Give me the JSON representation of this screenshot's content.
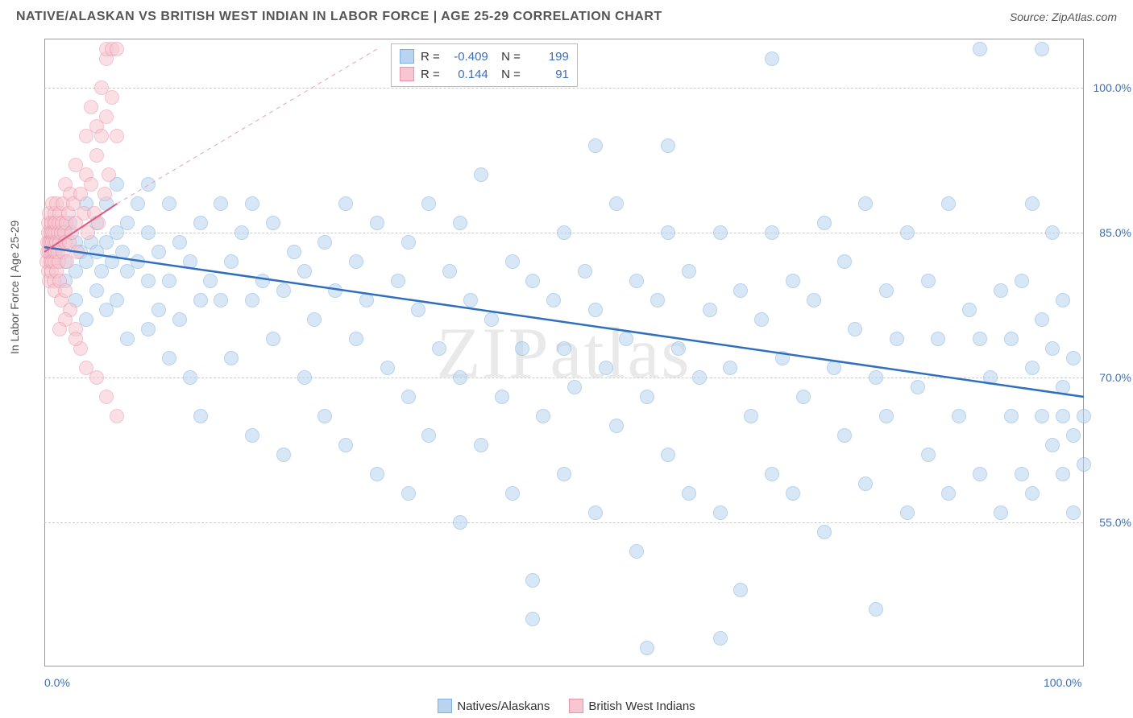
{
  "title": "NATIVE/ALASKAN VS BRITISH WEST INDIAN IN LABOR FORCE | AGE 25-29 CORRELATION CHART",
  "source": "Source: ZipAtlas.com",
  "y_axis_label": "In Labor Force | Age 25-29",
  "watermark": "ZIPatlas",
  "chart": {
    "type": "scatter",
    "xlim": [
      0,
      100
    ],
    "ylim": [
      40,
      105
    ],
    "x_ticks": [
      {
        "v": 0,
        "label": "0.0%"
      },
      {
        "v": 100,
        "label": "100.0%"
      }
    ],
    "y_ticks": [
      {
        "v": 55,
        "label": "55.0%"
      },
      {
        "v": 70,
        "label": "70.0%"
      },
      {
        "v": 85,
        "label": "85.0%"
      },
      {
        "v": 100,
        "label": "100.0%"
      }
    ],
    "grid_color": "#cccccc",
    "background_color": "#ffffff",
    "marker_radius": 9,
    "marker_stroke_width": 1.5,
    "series": [
      {
        "name": "Natives/Alaskans",
        "fill": "#b9d4f0",
        "stroke": "#7fb0e0",
        "fill_opacity": 0.55,
        "R": "-0.409",
        "N": "199",
        "trend": {
          "x1": 0,
          "y1": 83.5,
          "x2": 100,
          "y2": 68,
          "color": "#2f6fc0",
          "width": 2.5,
          "dash": "none"
        },
        "points": [
          [
            1,
            83
          ],
          [
            1.5,
            84
          ],
          [
            2,
            82
          ],
          [
            2,
            85
          ],
          [
            2,
            80
          ],
          [
            2.5,
            86
          ],
          [
            3,
            78
          ],
          [
            3,
            81
          ],
          [
            3,
            84
          ],
          [
            3.5,
            83
          ],
          [
            4,
            76
          ],
          [
            4,
            82
          ],
          [
            4,
            88
          ],
          [
            4.5,
            84
          ],
          [
            5,
            79
          ],
          [
            5,
            83
          ],
          [
            5,
            86
          ],
          [
            5.5,
            81
          ],
          [
            6,
            77
          ],
          [
            6,
            84
          ],
          [
            6,
            88
          ],
          [
            6.5,
            82
          ],
          [
            7,
            78
          ],
          [
            7,
            85
          ],
          [
            7,
            90
          ],
          [
            7.5,
            83
          ],
          [
            8,
            74
          ],
          [
            8,
            81
          ],
          [
            8,
            86
          ],
          [
            9,
            82
          ],
          [
            9,
            88
          ],
          [
            10,
            75
          ],
          [
            10,
            80
          ],
          [
            10,
            85
          ],
          [
            10,
            90
          ],
          [
            11,
            77
          ],
          [
            11,
            83
          ],
          [
            12,
            72
          ],
          [
            12,
            80
          ],
          [
            12,
            88
          ],
          [
            13,
            76
          ],
          [
            13,
            84
          ],
          [
            14,
            70
          ],
          [
            14,
            82
          ],
          [
            15,
            78
          ],
          [
            15,
            86
          ],
          [
            15,
            66
          ],
          [
            16,
            80
          ],
          [
            17,
            78
          ],
          [
            17,
            88
          ],
          [
            18,
            72
          ],
          [
            18,
            82
          ],
          [
            19,
            85
          ],
          [
            20,
            64
          ],
          [
            20,
            78
          ],
          [
            20,
            88
          ],
          [
            21,
            80
          ],
          [
            22,
            74
          ],
          [
            22,
            86
          ],
          [
            23,
            62
          ],
          [
            23,
            79
          ],
          [
            24,
            83
          ],
          [
            25,
            70
          ],
          [
            25,
            81
          ],
          [
            26,
            76
          ],
          [
            27,
            84
          ],
          [
            27,
            66
          ],
          [
            28,
            79
          ],
          [
            29,
            63
          ],
          [
            29,
            88
          ],
          [
            30,
            74
          ],
          [
            30,
            82
          ],
          [
            31,
            78
          ],
          [
            32,
            60
          ],
          [
            32,
            86
          ],
          [
            33,
            71
          ],
          [
            34,
            80
          ],
          [
            35,
            68
          ],
          [
            35,
            84
          ],
          [
            35,
            58
          ],
          [
            36,
            77
          ],
          [
            37,
            64
          ],
          [
            37,
            88
          ],
          [
            38,
            73
          ],
          [
            39,
            81
          ],
          [
            40,
            55
          ],
          [
            40,
            70
          ],
          [
            40,
            86
          ],
          [
            41,
            78
          ],
          [
            42,
            63
          ],
          [
            42,
            91
          ],
          [
            43,
            76
          ],
          [
            44,
            68
          ],
          [
            45,
            58
          ],
          [
            45,
            82
          ],
          [
            46,
            73
          ],
          [
            47,
            80
          ],
          [
            47,
            49
          ],
          [
            48,
            66
          ],
          [
            49,
            78
          ],
          [
            50,
            60
          ],
          [
            50,
            85
          ],
          [
            50,
            73
          ],
          [
            51,
            69
          ],
          [
            52,
            81
          ],
          [
            53,
            56
          ],
          [
            53,
            77
          ],
          [
            54,
            71
          ],
          [
            55,
            65
          ],
          [
            55,
            88
          ],
          [
            56,
            74
          ],
          [
            57,
            80
          ],
          [
            57,
            52
          ],
          [
            58,
            68
          ],
          [
            59,
            78
          ],
          [
            60,
            62
          ],
          [
            60,
            85
          ],
          [
            61,
            73
          ],
          [
            62,
            58
          ],
          [
            62,
            81
          ],
          [
            63,
            70
          ],
          [
            64,
            77
          ],
          [
            65,
            56
          ],
          [
            65,
            85
          ],
          [
            66,
            71
          ],
          [
            67,
            79
          ],
          [
            67,
            48
          ],
          [
            68,
            66
          ],
          [
            69,
            76
          ],
          [
            70,
            60
          ],
          [
            70,
            85
          ],
          [
            70,
            103
          ],
          [
            71,
            72
          ],
          [
            72,
            58
          ],
          [
            72,
            80
          ],
          [
            73,
            68
          ],
          [
            74,
            78
          ],
          [
            75,
            54
          ],
          [
            75,
            86
          ],
          [
            76,
            71
          ],
          [
            77,
            64
          ],
          [
            77,
            82
          ],
          [
            78,
            75
          ],
          [
            79,
            59
          ],
          [
            79,
            88
          ],
          [
            80,
            70
          ],
          [
            81,
            66
          ],
          [
            81,
            79
          ],
          [
            82,
            74
          ],
          [
            83,
            56
          ],
          [
            83,
            85
          ],
          [
            84,
            69
          ],
          [
            85,
            62
          ],
          [
            85,
            80
          ],
          [
            86,
            74
          ],
          [
            87,
            58
          ],
          [
            87,
            88
          ],
          [
            88,
            66
          ],
          [
            89,
            77
          ],
          [
            90,
            60
          ],
          [
            90,
            74
          ],
          [
            90,
            104
          ],
          [
            91,
            70
          ],
          [
            92,
            79
          ],
          [
            92,
            56
          ],
          [
            93,
            66
          ],
          [
            93,
            74
          ],
          [
            94,
            60
          ],
          [
            94,
            80
          ],
          [
            95,
            58
          ],
          [
            95,
            71
          ],
          [
            95,
            88
          ],
          [
            96,
            66
          ],
          [
            96,
            76
          ],
          [
            96,
            104
          ],
          [
            97,
            63
          ],
          [
            97,
            73
          ],
          [
            97,
            85
          ],
          [
            98,
            60
          ],
          [
            98,
            69
          ],
          [
            98,
            78
          ],
          [
            98,
            66
          ],
          [
            99,
            64
          ],
          [
            99,
            72
          ],
          [
            99,
            56
          ],
          [
            100,
            66
          ],
          [
            100,
            61
          ],
          [
            65,
            43
          ],
          [
            58,
            42
          ],
          [
            47,
            45
          ],
          [
            80,
            46
          ],
          [
            53,
            94
          ],
          [
            60,
            94
          ]
        ]
      },
      {
        "name": "British West Indians",
        "fill": "#f7c6d0",
        "stroke": "#e994ac",
        "fill_opacity": 0.55,
        "R": "0.144",
        "N": "91",
        "trend": {
          "x1": 0,
          "y1": 83,
          "x2": 7,
          "y2": 88,
          "color": "#e05a86",
          "width": 2,
          "dash": "none"
        },
        "extrap": {
          "x1": 7,
          "y1": 88,
          "x2": 32,
          "y2": 104,
          "color": "#e8a0b8",
          "width": 1,
          "dash": "5,5"
        },
        "points": [
          [
            0.2,
            82
          ],
          [
            0.3,
            84
          ],
          [
            0.3,
            83
          ],
          [
            0.4,
            85
          ],
          [
            0.4,
            81
          ],
          [
            0.4,
            86
          ],
          [
            0.5,
            83
          ],
          [
            0.5,
            84
          ],
          [
            0.5,
            80
          ],
          [
            0.5,
            87
          ],
          [
            0.6,
            82
          ],
          [
            0.6,
            85
          ],
          [
            0.6,
            84
          ],
          [
            0.7,
            83
          ],
          [
            0.7,
            86
          ],
          [
            0.7,
            81
          ],
          [
            0.8,
            84
          ],
          [
            0.8,
            82
          ],
          [
            0.8,
            85
          ],
          [
            0.8,
            88
          ],
          [
            0.9,
            83
          ],
          [
            0.9,
            86
          ],
          [
            0.9,
            80
          ],
          [
            1,
            84
          ],
          [
            1,
            85
          ],
          [
            1,
            82
          ],
          [
            1,
            87
          ],
          [
            1,
            79
          ],
          [
            1.1,
            83
          ],
          [
            1.1,
            86
          ],
          [
            1.2,
            84
          ],
          [
            1.2,
            81
          ],
          [
            1.2,
            88
          ],
          [
            1.3,
            85
          ],
          [
            1.3,
            83
          ],
          [
            1.4,
            86
          ],
          [
            1.4,
            82
          ],
          [
            1.5,
            84
          ],
          [
            1.5,
            87
          ],
          [
            1.5,
            80
          ],
          [
            1.6,
            85
          ],
          [
            1.6,
            78
          ],
          [
            1.7,
            86
          ],
          [
            1.8,
            83
          ],
          [
            1.8,
            88
          ],
          [
            1.9,
            85
          ],
          [
            2,
            84
          ],
          [
            2,
            90
          ],
          [
            2,
            79
          ],
          [
            2.1,
            86
          ],
          [
            2.2,
            82
          ],
          [
            2.3,
            87
          ],
          [
            2.4,
            84
          ],
          [
            2.5,
            89
          ],
          [
            2.5,
            77
          ],
          [
            2.6,
            85
          ],
          [
            2.8,
            88
          ],
          [
            3,
            86
          ],
          [
            3,
            92
          ],
          [
            3,
            75
          ],
          [
            3.2,
            83
          ],
          [
            3.5,
            89
          ],
          [
            3.5,
            73
          ],
          [
            3.8,
            87
          ],
          [
            4,
            91
          ],
          [
            4,
            95
          ],
          [
            4,
            71
          ],
          [
            4.2,
            85
          ],
          [
            4.5,
            90
          ],
          [
            4.5,
            98
          ],
          [
            4.8,
            87
          ],
          [
            5,
            93
          ],
          [
            5,
            96
          ],
          [
            5,
            70
          ],
          [
            5.2,
            86
          ],
          [
            5.5,
            100
          ],
          [
            5.5,
            95
          ],
          [
            5.8,
            89
          ],
          [
            6,
            103
          ],
          [
            6,
            97
          ],
          [
            6,
            104
          ],
          [
            6,
            68
          ],
          [
            6.2,
            91
          ],
          [
            6.5,
            104
          ],
          [
            6.5,
            99
          ],
          [
            7,
            104
          ],
          [
            7,
            95
          ],
          [
            7,
            66
          ],
          [
            2,
            76
          ],
          [
            3,
            74
          ],
          [
            1.5,
            75
          ]
        ]
      }
    ]
  },
  "legend": {
    "series1_label": "Natives/Alaskans",
    "series2_label": "British West Indians"
  }
}
